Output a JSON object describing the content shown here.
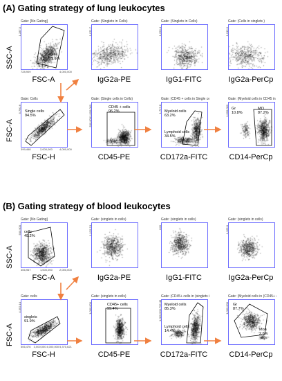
{
  "sections": [
    {
      "title": "(A) Gating strategy of lung leukocytes",
      "rows": [
        {
          "ylabel": "SSC-A",
          "plots": [
            {
              "gate": "Gate: [No Gating]",
              "xlabel": "FSC-A",
              "yticks": [
                "1,287.5"
              ],
              "xticks": [
                "728,909",
                "4,000,000"
              ],
              "labels": [
                {
                  "text": "Cells\n29.6%"
                }
              ]
            },
            {
              "gate": "Gate: (Singlets in Cells)",
              "xlabel": "IgG2a-PE",
              "yticks": [
                "1,071.7"
              ],
              "labels": []
            },
            {
              "gate": "Gate: (Singlets in Cells)",
              "xlabel": "IgG1-FITC",
              "yticks": [
                "1,290.4"
              ],
              "labels": []
            },
            {
              "gate": "Gate: (Cells in singlets )",
              "xlabel": "IgG2a-PerCp",
              "yticks": [
                "1,019.9"
              ],
              "labels": []
            }
          ]
        },
        {
          "ylabel": "FSC-A",
          "plots": [
            {
              "gate": "Gate: Cells",
              "xlabel": "FSC-H",
              "yticks": [
                "5,760.6"
              ],
              "xticks": [
                "399,468",
                "2,000,000",
                "4,000,000"
              ],
              "labels": [
                {
                  "text": "Single cells\n94.5%"
                }
              ]
            },
            {
              "gate": "Gate: (Single cells in Cells)",
              "xlabel": "CD45-PE",
              "yticks": [
                "1,000,000",
                "500,000"
              ],
              "labels": [
                {
                  "text": "CD45 + cells\n96.2%"
                }
              ]
            },
            {
              "gate": "Gate: (CD45 + cells in Single cell",
              "xlabel": "CD172a-FITC",
              "yticks": [
                "1,727.8"
              ],
              "labels": [
                {
                  "text": "Myeloid cells\n63.2%"
                },
                {
                  "text": "Lymphoid cells\n34.5%"
                }
              ]
            },
            {
              "gate": "Gate: (Myeloid cells in CD45 in",
              "xlabel": "CD14-PerCp",
              "yticks": [
                "1,000,000"
              ],
              "labels": [
                {
                  "text": "Gr\n10.8%"
                },
                {
                  "text": "MO\n87.2%"
                }
              ]
            }
          ]
        }
      ]
    },
    {
      "title": "(B) Gating strategy of blood leukocytes",
      "rows": [
        {
          "ylabel": "SSC-A",
          "plots": [
            {
              "gate": "Gate: [No Gating]",
              "xlabel": "FSC-A",
              "yticks": [
                "500,000"
              ],
              "xticks": [
                "406,967",
                "1,000,000",
                "2,000,000"
              ],
              "labels": [
                {
                  "text": "cells\n49.2%"
                }
              ]
            },
            {
              "gate": "Gate: (singlets in cells)",
              "xlabel": "IgG2a-PE",
              "yticks": [
                "1,129.74"
              ],
              "labels": []
            },
            {
              "gate": "Gate: (singlets in cells)",
              "xlabel": "IgG1-FITC",
              "yticks": [
                "840"
              ],
              "labels": []
            },
            {
              "gate": "Gate: (singlets in cells)",
              "xlabel": "IgG2a-PerCp",
              "yticks": [
                "1,165.0"
              ],
              "labels": []
            }
          ]
        },
        {
          "ylabel": "FSC-A",
          "plots": [
            {
              "gate": "Gate: cells",
              "xlabel": "FSC-H",
              "yticks": [
                "4,352.14"
              ],
              "xticks": [
                "506,476",
                "3,000,000",
                "4,000,000",
                "5,370,621"
              ],
              "labels": [
                {
                  "text": "singlets\n91.9%"
                }
              ]
            },
            {
              "gate": "Gate: (singlets in cells)",
              "xlabel": "CD45-PE",
              "yticks": [
                "1,000,000"
              ],
              "labels": [
                {
                  "text": "CD45+ cells\n99.4%"
                }
              ]
            },
            {
              "gate": "Gate: (CD45+ cells in (singlets in",
              "xlabel": "CD172a-FITC",
              "yticks": [
                "1,000,000.796.48"
              ],
              "labels": [
                {
                  "text": "Myeloid cells\n85.3%"
                },
                {
                  "text": "Lymphoid cells\n14.4%"
                }
              ]
            },
            {
              "gate": "Gate: (Myeloid cells in (CD45+ c",
              "xlabel": "CD14-PerCp",
              "yticks": [
                "1,000,000"
              ],
              "labels": [
                {
                  "text": "Gr\n87.7%"
                },
                {
                  "text": "Mon\n2.6%"
                }
              ]
            }
          ]
        }
      ]
    }
  ],
  "colors": {
    "axis_frame": "#6a6aff",
    "arrow": "#f08040",
    "gate": "#000000",
    "dots": "#000000"
  }
}
